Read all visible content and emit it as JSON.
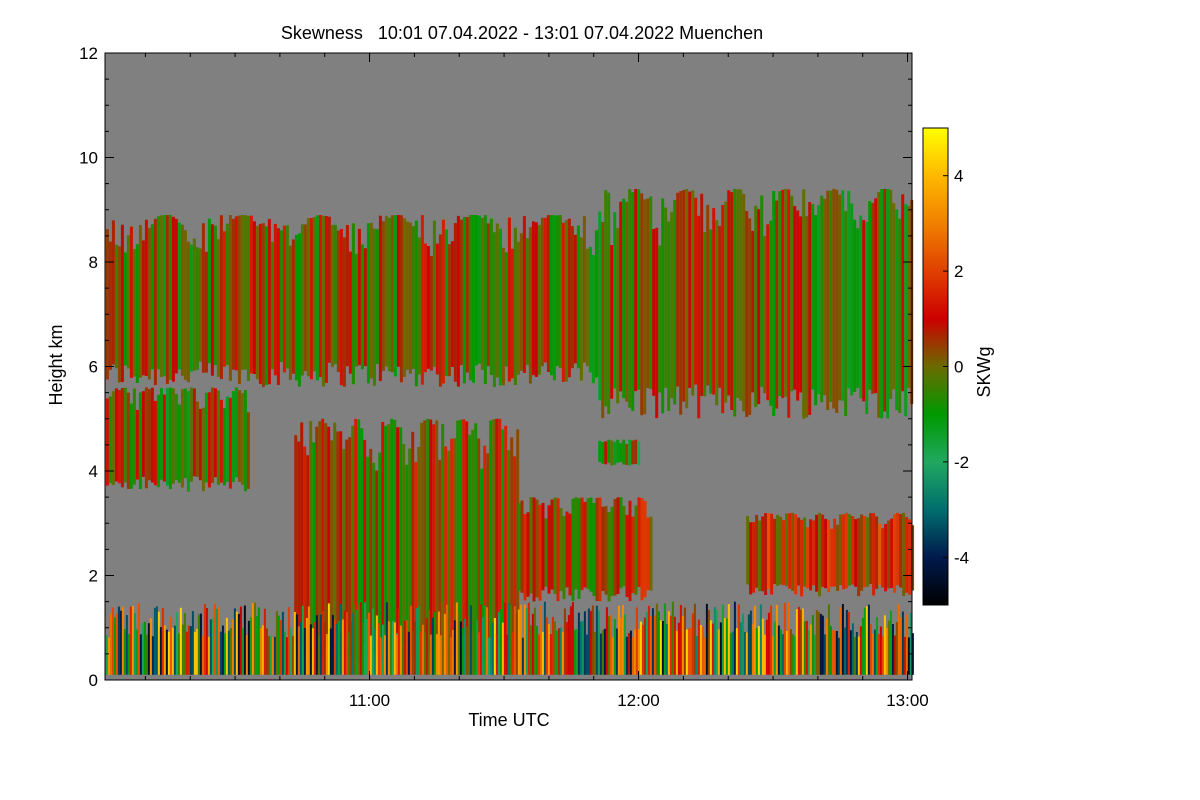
{
  "chart_data": {
    "type": "heatmap",
    "title": "Skewness   10:01 07.04.2022 - 13:01 07.04.2022 Muenchen",
    "xlabel": "Time UTC",
    "ylabel": "Height km",
    "x_range_hours": [
      10.0167,
      13.0167
    ],
    "x_ticks": [
      {
        "value": 11.0,
        "label": "11:00"
      },
      {
        "value": 12.0,
        "label": "12:00"
      },
      {
        "value": 13.0,
        "label": "13:00"
      }
    ],
    "x_minor_step_hours": 0.16667,
    "ylim": [
      0,
      12
    ],
    "y_ticks": [
      0,
      2,
      4,
      6,
      8,
      10,
      12
    ],
    "y_minor_step": 0.5,
    "colorbar": {
      "label": "SKWg",
      "range": [
        -5,
        5
      ],
      "ticks": [
        -4,
        -2,
        0,
        2,
        4
      ],
      "stops": [
        {
          "value": -5,
          "color": "#000000"
        },
        {
          "value": -4,
          "color": "#001a4d"
        },
        {
          "value": -3,
          "color": "#006e6e"
        },
        {
          "value": -2,
          "color": "#20a860"
        },
        {
          "value": -1,
          "color": "#009900"
        },
        {
          "value": 0,
          "color": "#6b6b00"
        },
        {
          "value": 1,
          "color": "#cc0000"
        },
        {
          "value": 2,
          "color": "#e04000"
        },
        {
          "value": 3,
          "color": "#f08000"
        },
        {
          "value": 4,
          "color": "#ffb800"
        },
        {
          "value": 5,
          "color": "#ffff00"
        }
      ]
    },
    "background_color": "#808080",
    "regions": [
      {
        "name": "upper-cloud-layer-west",
        "t0": 10.02,
        "t1": 11.85,
        "h0": 5.6,
        "h1": 8.9,
        "skew": 0.1
      },
      {
        "name": "upper-cloud-layer-east",
        "t0": 11.85,
        "t1": 13.02,
        "h0": 5.0,
        "h1": 9.4,
        "skew": 0.0
      },
      {
        "name": "mid-layer-west",
        "t0": 10.02,
        "t1": 10.55,
        "h0": 3.6,
        "h1": 5.6,
        "skew": 0.0
      },
      {
        "name": "convective-cell",
        "t0": 10.72,
        "t1": 11.55,
        "h0": 0.2,
        "h1": 5.0,
        "skew": 0.3
      },
      {
        "name": "lower-layer-central",
        "t0": 11.55,
        "t1": 12.05,
        "h0": 1.5,
        "h1": 3.5,
        "skew": 0.5
      },
      {
        "name": "lower-layer-east",
        "t0": 12.4,
        "t1": 13.02,
        "h0": 1.6,
        "h1": 3.2,
        "skew": 1.0
      },
      {
        "name": "small-cell-1200",
        "t0": 11.85,
        "t1": 12.0,
        "h0": 4.1,
        "h1": 4.6,
        "skew": -0.5
      },
      {
        "name": "boundary-layer-noise",
        "t0": 10.02,
        "t1": 13.02,
        "h0": 0.1,
        "h1": 1.5,
        "skew": 0.0
      }
    ]
  }
}
